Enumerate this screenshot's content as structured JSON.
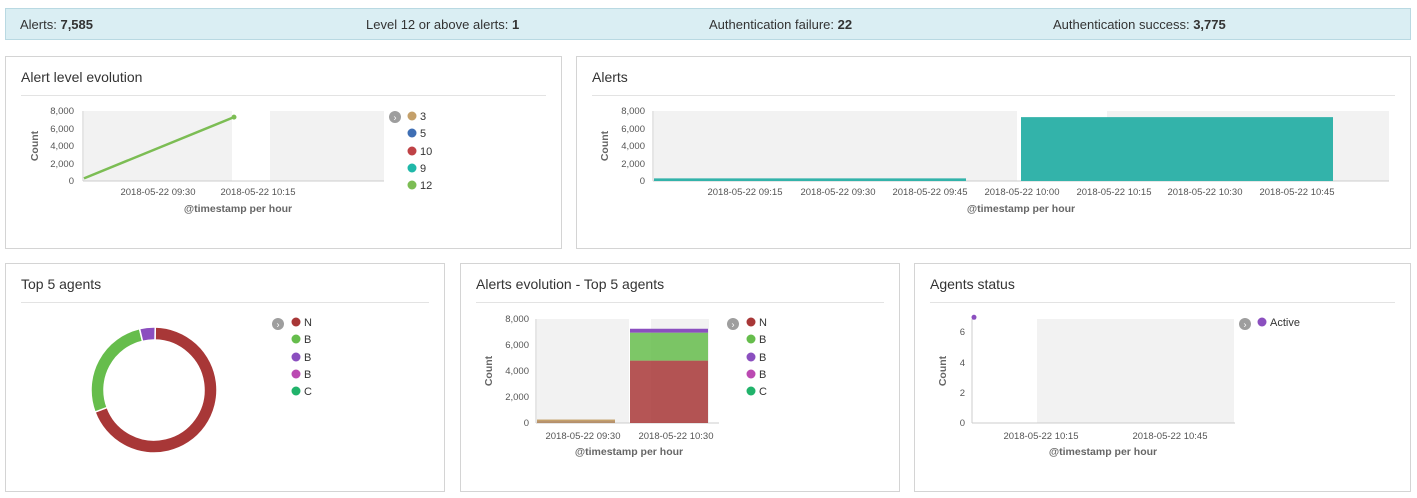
{
  "stats": {
    "alerts_label": "Alerts:",
    "alerts_value": "7,585",
    "level12_label": "Level 12 or above alerts:",
    "level12_value": "1",
    "authfail_label": "Authentication failure:",
    "authfail_value": "22",
    "authsucc_label": "Authentication success:",
    "authsucc_value": "3,775"
  },
  "panels": {
    "alert_level": {
      "title": "Alert level evolution"
    },
    "alerts": {
      "title": "Alerts"
    },
    "top5": {
      "title": "Top 5 agents"
    },
    "alerts_top5": {
      "title": "Alerts evolution - Top 5 agents"
    },
    "agents_status": {
      "title": "Agents status"
    }
  },
  "colors": {
    "lvl3": "#c4a06a",
    "lvl5": "#3f6fb4",
    "lvl10": "#bf4246",
    "lvl9": "#1fb8a9",
    "lvl12": "#7cbd54",
    "teal": "#33b3aa",
    "maroon": "#a83737",
    "green": "#66bd4c",
    "purple": "#8b4fbf",
    "pink": "#bb4ab2",
    "emerald": "#21b36b"
  },
  "chart_data": [
    {
      "type": "line",
      "title": "Alert level evolution",
      "xlabel": "@timestamp per hour",
      "ylabel": "Count",
      "ylim": [
        0,
        8000
      ],
      "yticks": [
        "8,000",
        "6,000",
        "4,000",
        "2,000",
        "0"
      ],
      "xticks": [
        "2018-05-22 09:30",
        "2018-05-22 10:15"
      ],
      "series": [
        {
          "name": "12",
          "x": [
            "2018-05-22 09:00",
            "2018-05-22 10:00"
          ],
          "values": [
            300,
            7300
          ]
        }
      ],
      "legend": [
        "3",
        "5",
        "10",
        "9",
        "12"
      ]
    },
    {
      "type": "bar",
      "title": "Alerts",
      "xlabel": "@timestamp per hour",
      "ylabel": "Count",
      "ylim": [
        0,
        8000
      ],
      "yticks": [
        "8,000",
        "6,000",
        "4,000",
        "2,000",
        "0"
      ],
      "xticks": [
        "2018-05-22 09:15",
        "2018-05-22 09:30",
        "2018-05-22 09:45",
        "2018-05-22 10:00",
        "2018-05-22 10:15",
        "2018-05-22 10:30",
        "2018-05-22 10:45"
      ],
      "categories": [
        "2018-05-22 09:00",
        "2018-05-22 10:00"
      ],
      "values": [
        300,
        7300
      ]
    },
    {
      "type": "pie",
      "title": "Top 5 agents",
      "legend": [
        "N",
        "B",
        "B",
        "B",
        "C"
      ],
      "values": [
        69,
        27,
        4,
        0,
        0
      ]
    },
    {
      "type": "bar",
      "title": "Alerts evolution - Top 5 agents",
      "xlabel": "@timestamp per hour",
      "ylabel": "Count",
      "ylim": [
        0,
        8000
      ],
      "yticks": [
        "8,000",
        "6,000",
        "4,000",
        "2,000",
        "0"
      ],
      "categories": [
        "2018-05-22 09:30",
        "2018-05-22 10:30"
      ],
      "legend": [
        "N",
        "B",
        "B",
        "B",
        "C"
      ],
      "series": [
        {
          "values": [
            150,
            4800
          ]
        },
        {
          "values": [
            100,
            2150
          ]
        },
        {
          "values": [
            0,
            300
          ]
        },
        {
          "values": [
            0,
            0
          ]
        },
        {
          "values": [
            0,
            0
          ]
        }
      ]
    },
    {
      "type": "line",
      "title": "Agents status",
      "xlabel": "@timestamp per hour",
      "ylabel": "Count",
      "ylim": [
        0,
        7
      ],
      "yticks": [
        "6",
        "4",
        "2",
        "0"
      ],
      "xticks": [
        "2018-05-22 10:15",
        "2018-05-22 10:45"
      ],
      "series": [
        {
          "name": "Active",
          "values": [
            7
          ]
        }
      ],
      "legend": [
        "Active"
      ]
    }
  ]
}
